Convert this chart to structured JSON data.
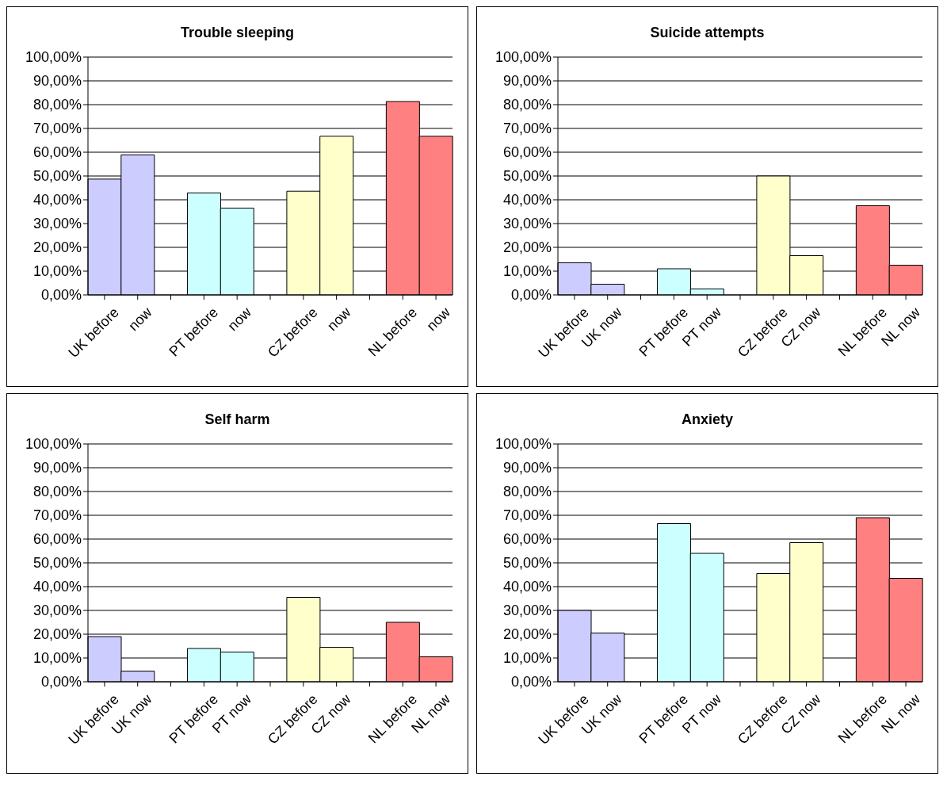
{
  "chart_data": [
    {
      "type": "bar",
      "title": "Trouble sleeping",
      "categories": [
        "UK before",
        "now",
        null,
        "PT before",
        "now",
        null,
        "CZ before",
        "now",
        null,
        "NL before",
        "now"
      ],
      "values": [
        48.7,
        58.9,
        null,
        42.9,
        36.5,
        null,
        43.6,
        66.7,
        null,
        81.3,
        66.7
      ],
      "colors": [
        "#ccccff",
        "#ccccff",
        null,
        "#ccffff",
        "#ccffff",
        null,
        "#ffffcc",
        "#ffffcc",
        null,
        "#ff8080",
        "#ff8080"
      ],
      "ylim": [
        0,
        100
      ],
      "yticks": [
        {
          "value": 0,
          "label": "0,00%"
        },
        {
          "value": 10,
          "label": "10,00%"
        },
        {
          "value": 20,
          "label": "20,00%"
        },
        {
          "value": 30,
          "label": "30,00%"
        },
        {
          "value": 40,
          "label": "40,00%"
        },
        {
          "value": 50,
          "label": "50,00%"
        },
        {
          "value": 60,
          "label": "60,00%"
        },
        {
          "value": 70,
          "label": "70,00%"
        },
        {
          "value": 80,
          "label": "80,00%"
        },
        {
          "value": 90,
          "label": "90,00%"
        },
        {
          "value": 100,
          "label": "100,00%"
        }
      ],
      "grid": "y"
    },
    {
      "type": "bar",
      "title": "Suicide attempts",
      "categories": [
        "UK before",
        "UK now",
        null,
        "PT before",
        "PT now",
        null,
        "CZ before",
        "CZ now",
        null,
        "NL before",
        "NL now"
      ],
      "values": [
        13.5,
        4.5,
        null,
        11,
        2.5,
        null,
        50,
        16.5,
        null,
        37.5,
        12.5
      ],
      "colors": [
        "#ccccff",
        "#ccccff",
        null,
        "#ccffff",
        "#ccffff",
        null,
        "#ffffcc",
        "#ffffcc",
        null,
        "#ff8080",
        "#ff8080"
      ],
      "ylim": [
        0,
        100
      ],
      "yticks": [
        {
          "value": 0,
          "label": "0,00%"
        },
        {
          "value": 10,
          "label": "10,00%"
        },
        {
          "value": 20,
          "label": "20,00%"
        },
        {
          "value": 30,
          "label": "30,00%"
        },
        {
          "value": 40,
          "label": "40,00%"
        },
        {
          "value": 50,
          "label": "50,00%"
        },
        {
          "value": 60,
          "label": "60,00%"
        },
        {
          "value": 70,
          "label": "70,00%"
        },
        {
          "value": 80,
          "label": "80,00%"
        },
        {
          "value": 90,
          "label": "90,00%"
        },
        {
          "value": 100,
          "label": "100,00%"
        }
      ],
      "grid": "y"
    },
    {
      "type": "bar",
      "title": "Self harm",
      "categories": [
        "UK before",
        "UK now",
        null,
        "PT before",
        "PT now",
        null,
        "CZ before",
        "CZ now",
        null,
        "NL before",
        "NL now"
      ],
      "values": [
        19,
        4.5,
        null,
        14,
        12.5,
        null,
        35.5,
        14.5,
        null,
        25,
        10.5
      ],
      "colors": [
        "#ccccff",
        "#ccccff",
        null,
        "#ccffff",
        "#ccffff",
        null,
        "#ffffcc",
        "#ffffcc",
        null,
        "#ff8080",
        "#ff8080"
      ],
      "ylim": [
        0,
        100
      ],
      "yticks": [
        {
          "value": 0,
          "label": "0,00%"
        },
        {
          "value": 10,
          "label": "10,00%"
        },
        {
          "value": 20,
          "label": "20,00%"
        },
        {
          "value": 30,
          "label": "30,00%"
        },
        {
          "value": 40,
          "label": "40,00%"
        },
        {
          "value": 50,
          "label": "50,00%"
        },
        {
          "value": 60,
          "label": "60,00%"
        },
        {
          "value": 70,
          "label": "70,00%"
        },
        {
          "value": 80,
          "label": "80,00%"
        },
        {
          "value": 90,
          "label": "90,00%"
        },
        {
          "value": 100,
          "label": "100,00%"
        }
      ],
      "grid": "y"
    },
    {
      "type": "bar",
      "title": "Anxiety",
      "categories": [
        "UK before",
        "UK now",
        null,
        "PT before",
        "PT now",
        null,
        "CZ before",
        "CZ now",
        null,
        "NL before",
        "NL now"
      ],
      "values": [
        30,
        20.5,
        null,
        66.5,
        54,
        null,
        45.5,
        58.5,
        null,
        69,
        43.5
      ],
      "colors": [
        "#ccccff",
        "#ccccff",
        null,
        "#ccffff",
        "#ccffff",
        null,
        "#ffffcc",
        "#ffffcc",
        null,
        "#ff8080",
        "#ff8080"
      ],
      "ylim": [
        0,
        100
      ],
      "yticks": [
        {
          "value": 0,
          "label": "0,00%"
        },
        {
          "value": 10,
          "label": "10,00%"
        },
        {
          "value": 20,
          "label": "20,00%"
        },
        {
          "value": 30,
          "label": "30,00%"
        },
        {
          "value": 40,
          "label": "40,00%"
        },
        {
          "value": 50,
          "label": "50,00%"
        },
        {
          "value": 60,
          "label": "60,00%"
        },
        {
          "value": 70,
          "label": "70,00%"
        },
        {
          "value": 80,
          "label": "80,00%"
        },
        {
          "value": 90,
          "label": "90,00%"
        },
        {
          "value": 100,
          "label": "100,00%"
        }
      ],
      "grid": "y"
    }
  ]
}
